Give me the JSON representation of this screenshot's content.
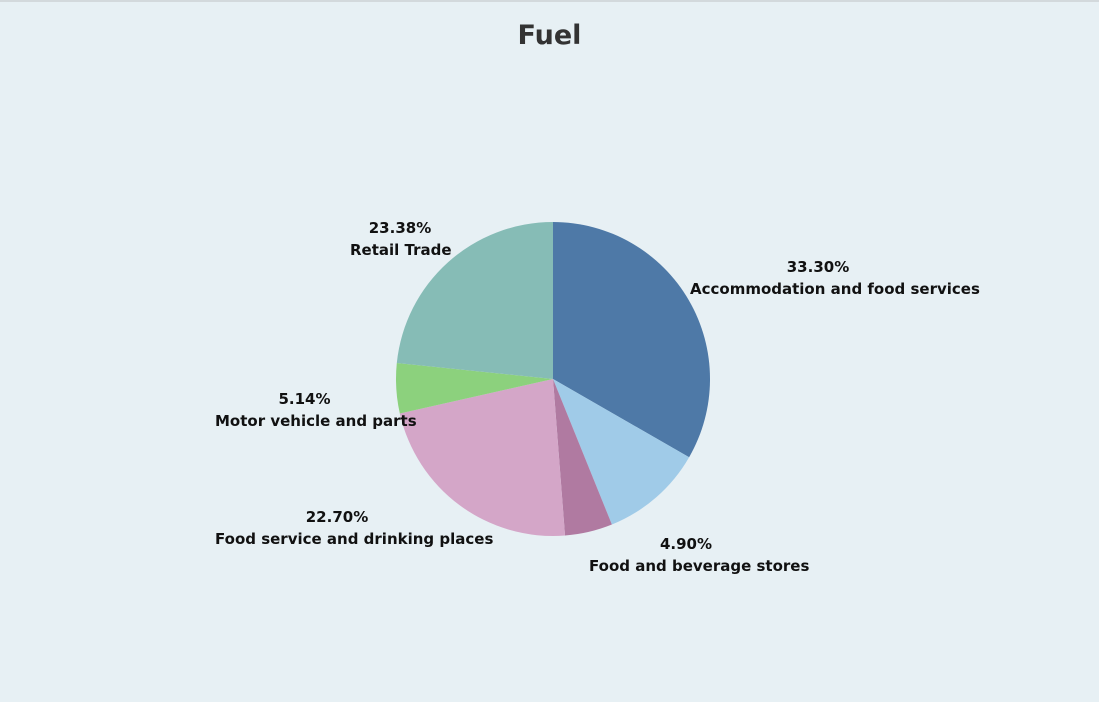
{
  "chart_data": {
    "type": "pie",
    "title": "Fuel",
    "start_angle_deg": 0,
    "direction": "clockwise",
    "slices": [
      {
        "label": "Accommodation and food services",
        "value": 33.3,
        "value_label": "33.30%",
        "color": "#4e79a7"
      },
      {
        "label": "",
        "value": 10.58,
        "value_label": "",
        "color": "#a0cbe8"
      },
      {
        "label": "Food and beverage stores",
        "value": 4.9,
        "value_label": "4.90%",
        "color": "#b07aa1"
      },
      {
        "label": "Food service and drinking places",
        "value": 22.7,
        "value_label": "22.70%",
        "color": "#d4a6c8"
      },
      {
        "label": "Motor vehicle and parts",
        "value": 5.14,
        "value_label": "5.14%",
        "color": "#8cd17d"
      },
      {
        "label": "Retail Trade",
        "value": 23.38,
        "value_label": "23.38%",
        "color": "#86bcb6"
      }
    ]
  }
}
